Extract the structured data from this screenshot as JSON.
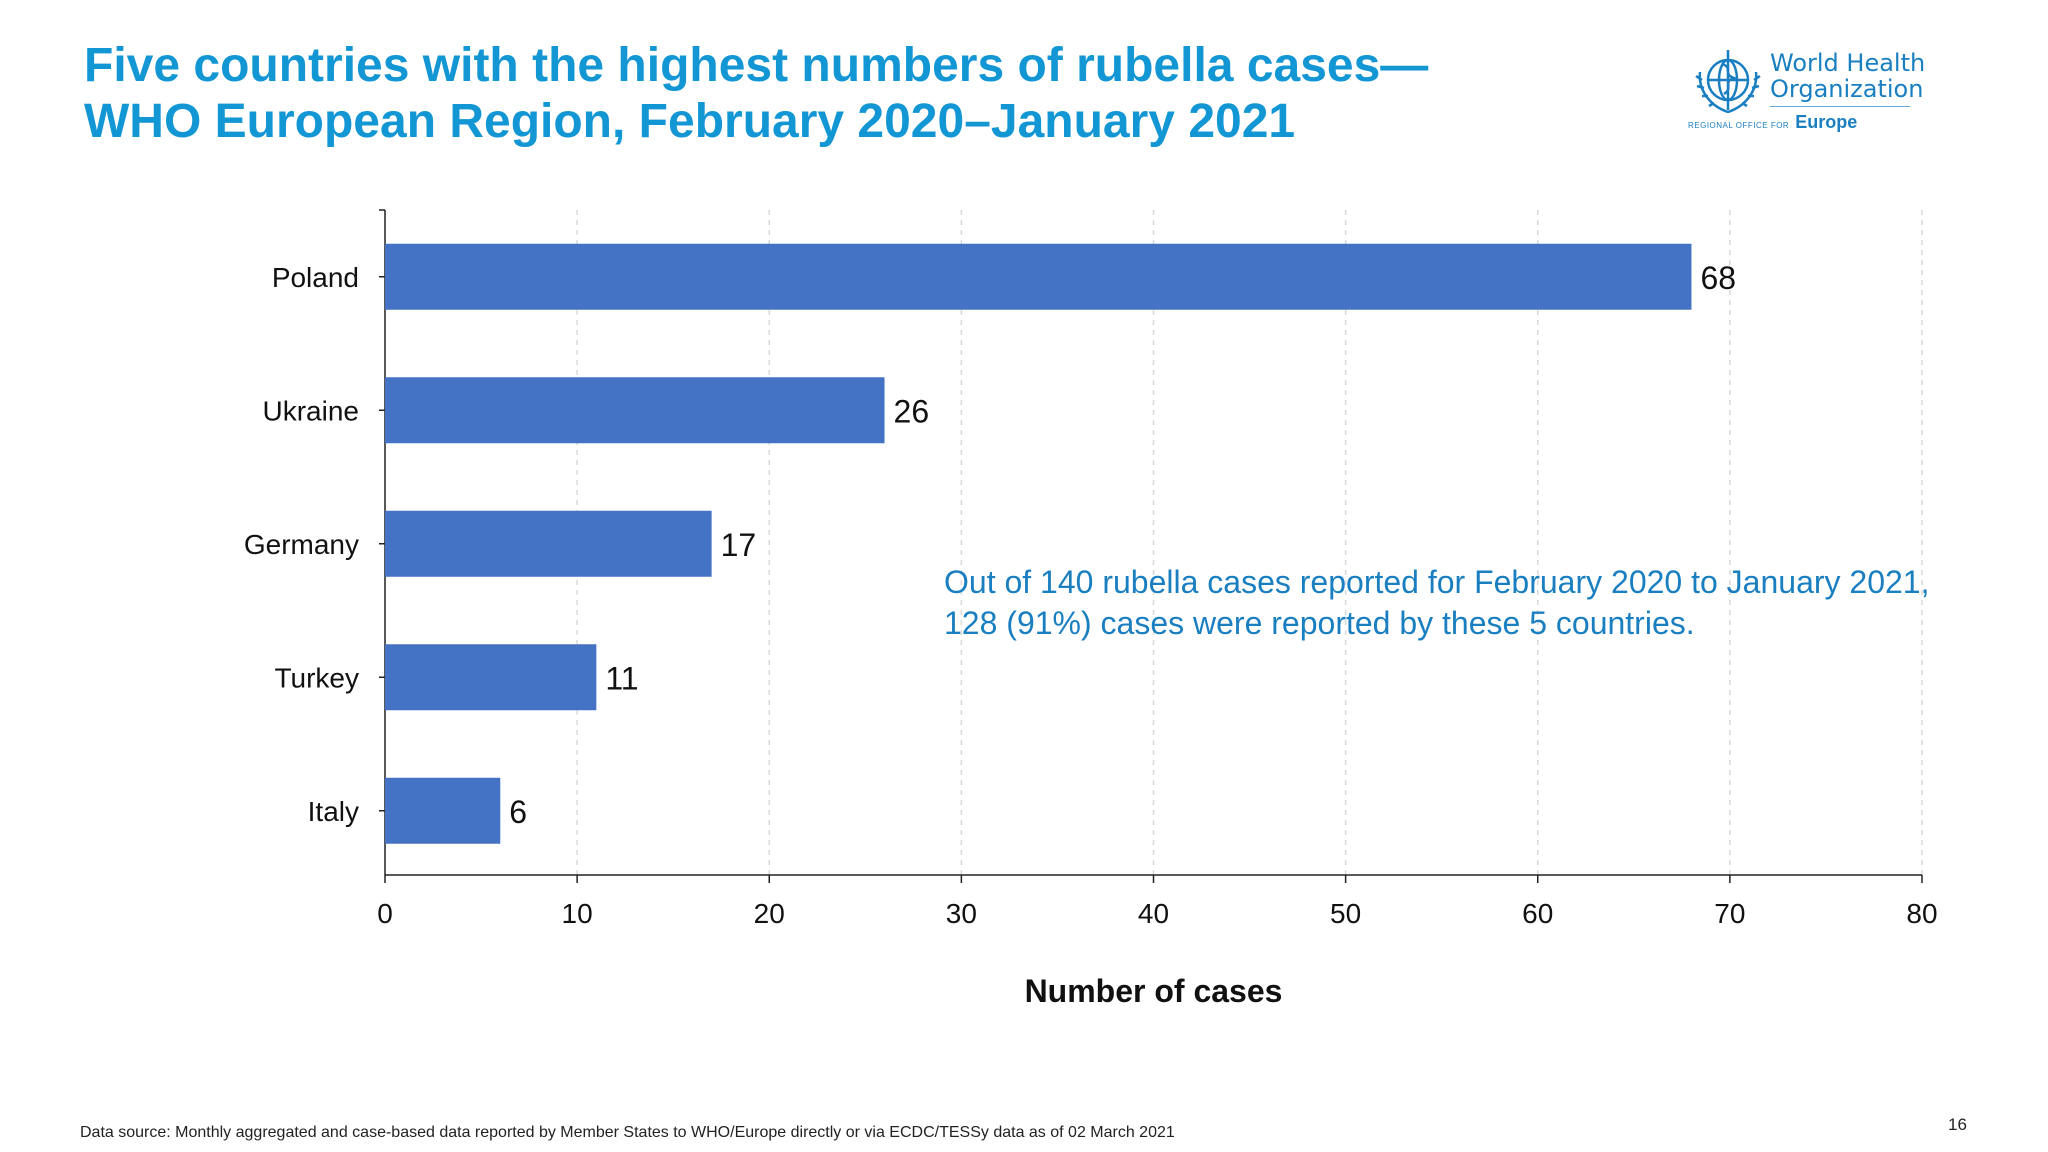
{
  "slide": {
    "title_line1": "Five countries with the highest numbers of rubella cases—",
    "title_line2": "WHO European Region, February 2020–January 2021",
    "annotation": "Out of 140 rubella cases reported for February 2020 to January 2021, 128 (91%) cases were reported by these 5 countries.",
    "source": "Data source: Monthly aggregated and case-based data reported by Member States to WHO/Europe directly or via ECDC/TESSy data as of 02 March 2021",
    "page_number": "16"
  },
  "logo": {
    "line1": "World Health",
    "line2": "Organization",
    "region_small": "REGIONAL OFFICE FOR",
    "region_big": "Europe"
  },
  "chart_data": {
    "type": "bar",
    "orientation": "horizontal",
    "categories": [
      "Poland",
      "Ukraine",
      "Germany",
      "Turkey",
      "Italy"
    ],
    "values": [
      68,
      26,
      17,
      11,
      6
    ],
    "xlabel": "Number of cases",
    "xlim": [
      0,
      80
    ],
    "xticks": [
      0,
      10,
      20,
      30,
      40,
      50,
      60,
      70,
      80
    ],
    "grid": "vertical dashed",
    "bar_color": "#4472c4",
    "data_labels": true
  }
}
